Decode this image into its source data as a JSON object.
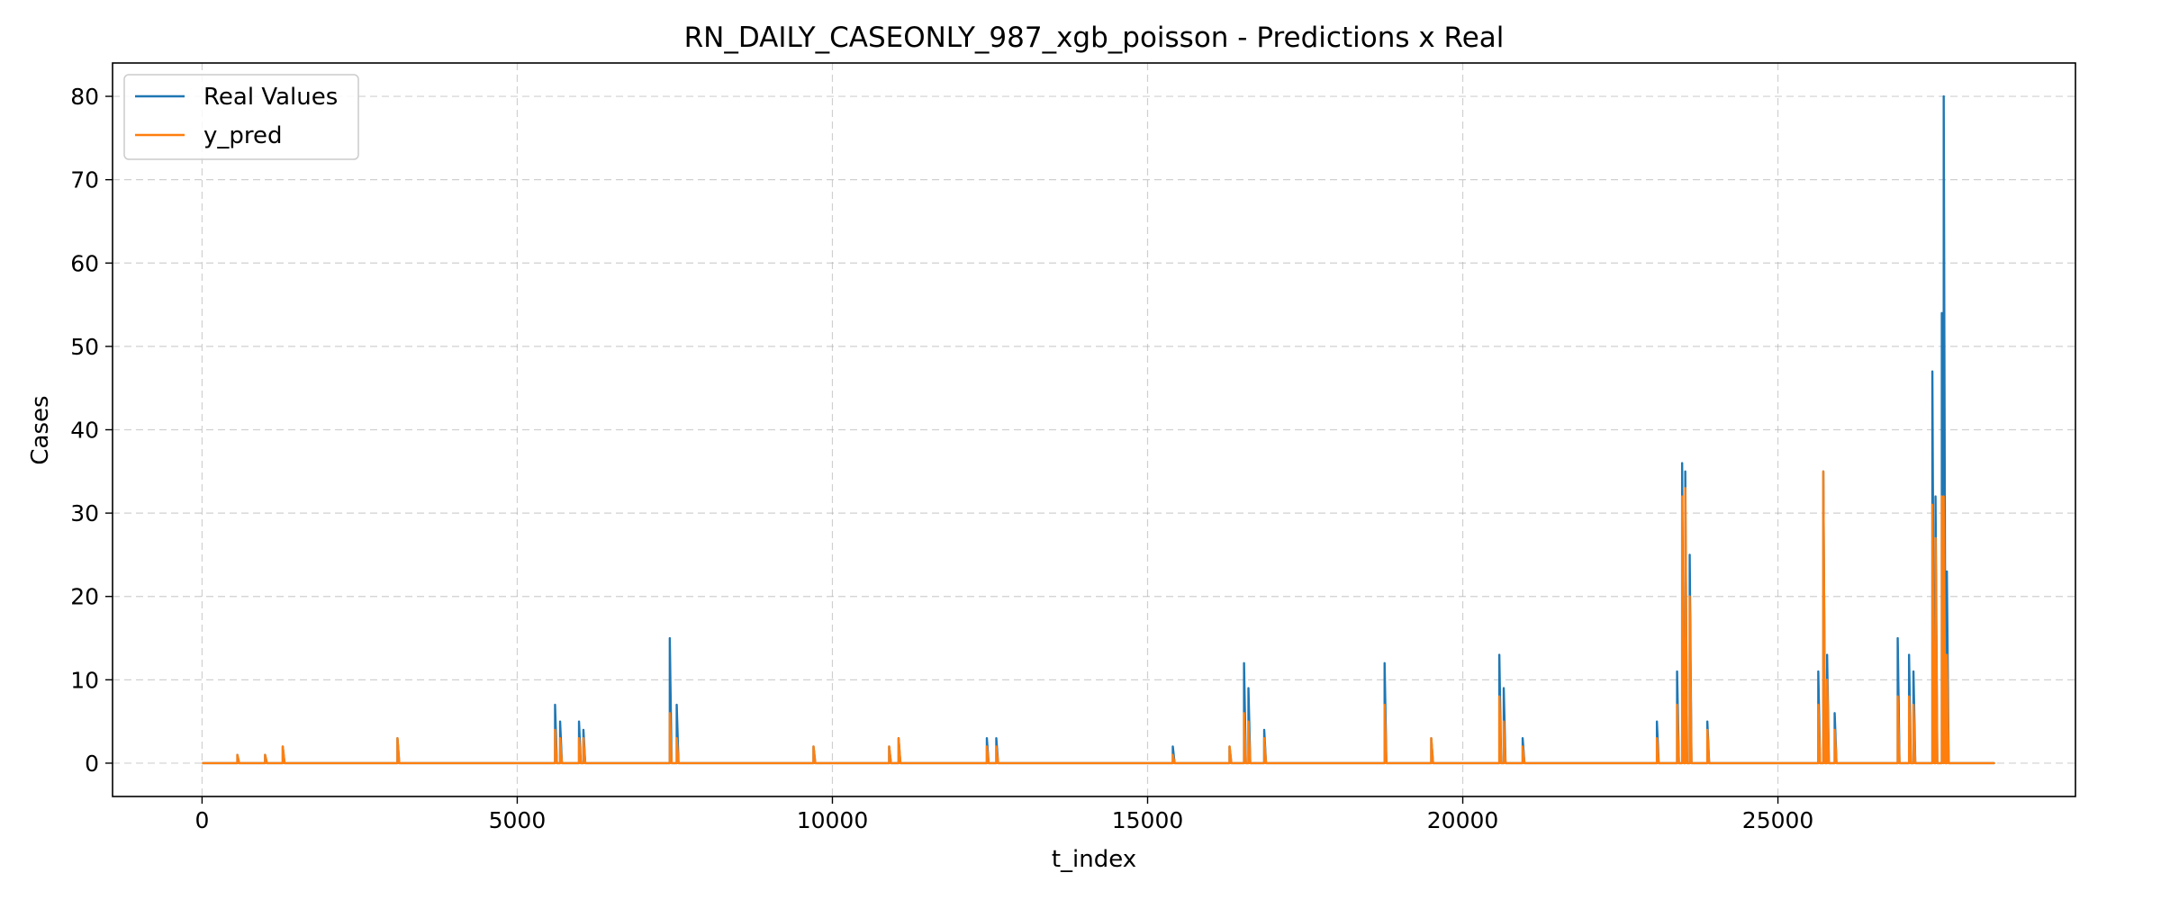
{
  "chart_data": {
    "type": "line",
    "title": "RN_DAILY_CASEONLY_987_xgb_poisson - Predictions x Real",
    "xlabel": "t_index",
    "ylabel": "Cases",
    "xlim": [
      -1420,
      29720
    ],
    "ylim": [
      -4,
      84
    ],
    "xticks": [
      0,
      5000,
      10000,
      15000,
      20000,
      25000
    ],
    "yticks": [
      0,
      10,
      20,
      30,
      40,
      50,
      60,
      70,
      80
    ],
    "grid": true,
    "legend_position": "upper-left",
    "series": [
      {
        "name": "Real Values",
        "color": "#1f77b4",
        "points": [
          [
            0,
            0
          ],
          [
            560,
            1
          ],
          [
            1000,
            1
          ],
          [
            1280,
            2
          ],
          [
            3100,
            3
          ],
          [
            5600,
            7
          ],
          [
            5680,
            5
          ],
          [
            5980,
            5
          ],
          [
            6050,
            4
          ],
          [
            7420,
            15
          ],
          [
            7530,
            7
          ],
          [
            9700,
            2
          ],
          [
            10900,
            2
          ],
          [
            11050,
            3
          ],
          [
            12450,
            3
          ],
          [
            12600,
            3
          ],
          [
            15400,
            2
          ],
          [
            16300,
            2
          ],
          [
            16530,
            12
          ],
          [
            16600,
            9
          ],
          [
            16850,
            4
          ],
          [
            18760,
            12
          ],
          [
            19500,
            3
          ],
          [
            20580,
            13
          ],
          [
            20650,
            9
          ],
          [
            20950,
            3
          ],
          [
            23080,
            5
          ],
          [
            23400,
            11
          ],
          [
            23480,
            36
          ],
          [
            23530,
            35
          ],
          [
            23600,
            25
          ],
          [
            23880,
            5
          ],
          [
            25640,
            11
          ],
          [
            25720,
            35
          ],
          [
            25780,
            13
          ],
          [
            25900,
            6
          ],
          [
            26900,
            15
          ],
          [
            27080,
            13
          ],
          [
            27150,
            11
          ],
          [
            27450,
            47
          ],
          [
            27500,
            32
          ],
          [
            27600,
            54
          ],
          [
            27630,
            80
          ],
          [
            27680,
            23
          ],
          [
            28400,
            0
          ]
        ]
      },
      {
        "name": "y_pred",
        "color": "#ff7f0e",
        "points": [
          [
            0,
            0
          ],
          [
            560,
            1
          ],
          [
            1000,
            1
          ],
          [
            1280,
            2
          ],
          [
            3100,
            3
          ],
          [
            5600,
            4
          ],
          [
            5680,
            3
          ],
          [
            5980,
            3
          ],
          [
            6050,
            3
          ],
          [
            7420,
            6
          ],
          [
            7530,
            3
          ],
          [
            9700,
            2
          ],
          [
            10900,
            2
          ],
          [
            11050,
            3
          ],
          [
            12450,
            2
          ],
          [
            12600,
            2
          ],
          [
            15400,
            1
          ],
          [
            16300,
            2
          ],
          [
            16530,
            6
          ],
          [
            16600,
            5
          ],
          [
            16850,
            3
          ],
          [
            18760,
            7
          ],
          [
            19500,
            3
          ],
          [
            20580,
            8
          ],
          [
            20650,
            5
          ],
          [
            20950,
            2
          ],
          [
            23080,
            3
          ],
          [
            23400,
            7
          ],
          [
            23480,
            32
          ],
          [
            23530,
            33
          ],
          [
            23600,
            20
          ],
          [
            23880,
            4
          ],
          [
            25640,
            7
          ],
          [
            25720,
            35
          ],
          [
            25780,
            10
          ],
          [
            25900,
            4
          ],
          [
            26900,
            8
          ],
          [
            27080,
            8
          ],
          [
            27150,
            7
          ],
          [
            27450,
            31
          ],
          [
            27500,
            27
          ],
          [
            27600,
            32
          ],
          [
            27630,
            32
          ],
          [
            27680,
            13
          ],
          [
            28400,
            0
          ]
        ]
      }
    ]
  }
}
